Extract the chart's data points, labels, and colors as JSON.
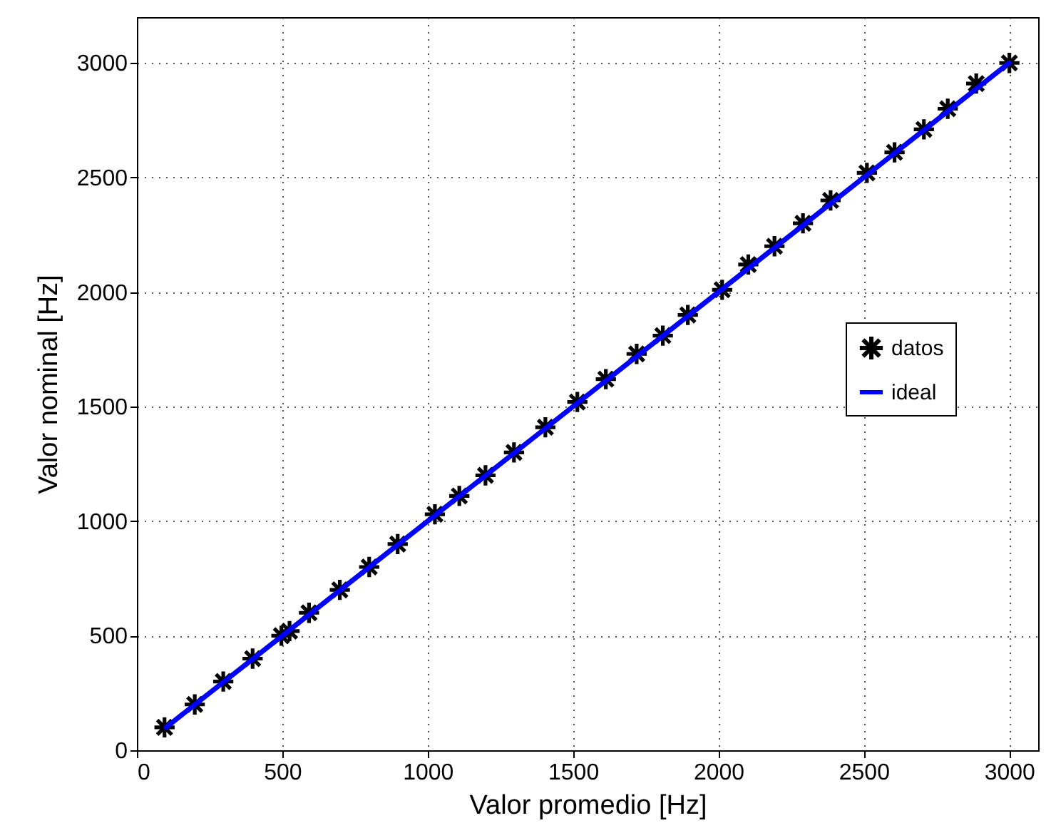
{
  "chart_data": {
    "type": "scatter",
    "xlabel": "Valor promedio [Hz]",
    "ylabel": "Valor nominal [Hz]",
    "xlim": [
      0,
      3100
    ],
    "ylim": [
      0,
      3200
    ],
    "xticks": [
      0,
      500,
      1000,
      1500,
      2000,
      2500,
      3000
    ],
    "yticks": [
      0,
      500,
      1000,
      1500,
      2000,
      2500,
      3000
    ],
    "grid": true,
    "legend": "right",
    "series": [
      {
        "name": "datos",
        "marker": "cross",
        "color": "#000000",
        "x": [
          95,
          199,
          297,
          398,
          497,
          525,
          592,
          698,
          799,
          897,
          1025,
          1109,
          1199,
          1297,
          1405,
          1515,
          1613,
          1719,
          1809,
          1895,
          2013,
          2103,
          2193,
          2291,
          2386,
          2511,
          2606,
          2707,
          2789,
          2887,
          3001
        ],
        "values": [
          100,
          200,
          300,
          400,
          500,
          520,
          600,
          700,
          800,
          900,
          1030,
          1110,
          1200,
          1300,
          1410,
          1520,
          1620,
          1730,
          1810,
          1900,
          2010,
          2120,
          2200,
          2300,
          2400,
          2520,
          2610,
          2710,
          2800,
          2910,
          3000
        ]
      },
      {
        "name": "ideal",
        "type": "line",
        "color": "#0000ff",
        "x": [
          100,
          3000
        ],
        "values": [
          100,
          3000
        ]
      }
    ]
  }
}
